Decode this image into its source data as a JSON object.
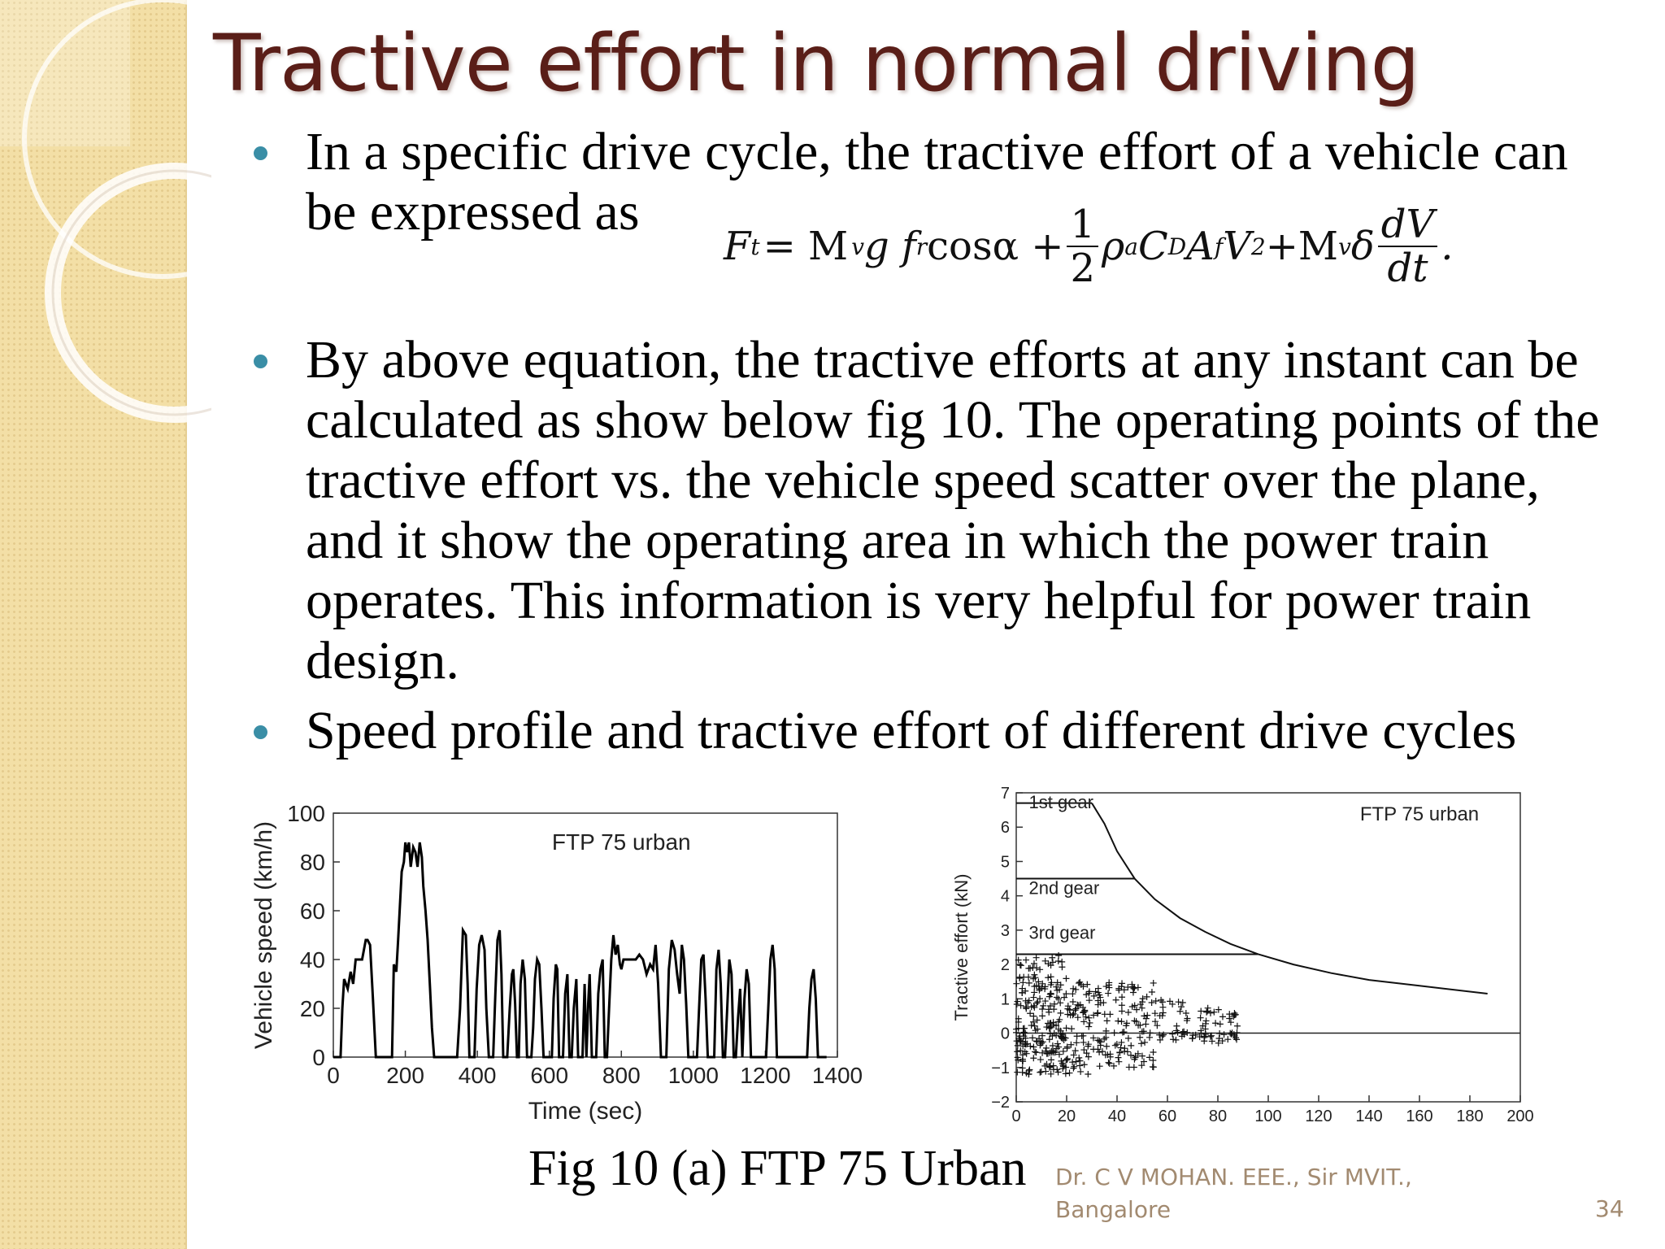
{
  "slide": {
    "title": "Tractive effort in normal driving",
    "bullets": [
      "In a specific drive cycle, the tractive effort of a vehicle can be expressed as",
      "By above equation, the tractive efforts at any instant can be calculated as show below fig 10. The operating points of the tractive effort vs. the vehicle speed scatter over the plane, and it show the operating area in which the power train operates. This information is very helpful for power train design.",
      "Speed profile and tractive effort of different drive cycles"
    ],
    "formula": {
      "lhs": "F",
      "lhs_sub": "t",
      "term1": "= M",
      "term1_sub": "v",
      "term1b": "g f",
      "term1b_sub": "r",
      "term1c": " cosα +",
      "half_num": "1",
      "half_den": "2",
      "term2": "ρ",
      "term2_sub": "a",
      "term2b": "C",
      "term2b_sub": "D",
      "term2c": " A",
      "term2c_sub": "f",
      "term2d": "V",
      "term2d_sup": "2",
      "term3": "+M",
      "term3_sub": "v",
      "term3b": "δ",
      "deriv_num": "dV",
      "deriv_den": "dt",
      "end": "."
    },
    "figure_caption": "Fig 10 (a) FTP 75 Urban",
    "footer_author": "Dr.  C V MOHAN.  EEE., Sir MVIT., Bangalore",
    "page_number": "34",
    "colors": {
      "title": "#5a1e18",
      "bullet": "#3a8ea6",
      "band": "#f3dfa6",
      "footer": "#a28a70"
    }
  },
  "chart_data": [
    {
      "type": "line",
      "legend_text": "FTP 75 urban",
      "xlabel": "Time (sec)",
      "ylabel": "Vehicle speed (km/h)",
      "xlim": [
        0,
        1400
      ],
      "ylim": [
        0,
        100
      ],
      "xticks": [
        0,
        200,
        400,
        600,
        800,
        1000,
        1200,
        1400
      ],
      "yticks": [
        0,
        20,
        40,
        60,
        80,
        100
      ],
      "x": [
        0,
        20,
        25,
        30,
        40,
        48,
        55,
        62,
        72,
        80,
        90,
        95,
        102,
        110,
        118,
        122,
        128,
        134,
        140,
        150,
        155,
        160,
        163,
        168,
        175,
        180,
        185,
        190,
        196,
        200,
        205,
        210,
        215,
        222,
        228,
        234,
        240,
        246,
        250,
        256,
        262,
        268,
        274,
        280,
        286,
        292,
        300,
        308,
        316,
        324,
        332,
        338,
        344,
        352,
        360,
        368,
        373,
        378,
        385,
        392,
        398,
        405,
        412,
        420,
        425,
        432,
        438,
        444,
        450,
        456,
        462,
        467,
        472,
        478,
        483,
        490,
        496,
        500,
        505,
        510,
        515,
        520,
        526,
        532,
        538,
        545,
        550,
        555,
        560,
        566,
        572,
        578,
        584,
        590,
        596,
        602,
        607,
        612,
        618,
        622,
        627,
        633,
        638,
        644,
        650,
        656,
        662,
        668,
        675,
        680,
        686,
        692,
        698,
        703,
        708,
        712,
        718,
        724,
        730,
        736,
        742,
        748,
        754,
        760,
        766,
        772,
        778,
        784,
        790,
        796,
        800,
        806,
        812,
        820,
        830,
        840,
        850,
        860,
        870,
        880,
        888,
        895,
        902,
        910,
        918,
        925,
        932,
        940,
        948,
        955,
        962,
        968,
        974,
        980,
        986,
        992,
        998,
        1004,
        1010,
        1016,
        1022,
        1028,
        1034,
        1040,
        1046,
        1052,
        1058,
        1064,
        1070,
        1076,
        1082,
        1088,
        1094,
        1100,
        1106,
        1112,
        1118,
        1124,
        1130,
        1136,
        1142,
        1148,
        1154,
        1160,
        1166,
        1172,
        1178,
        1184,
        1190,
        1196,
        1202,
        1208,
        1214,
        1220,
        1226,
        1232,
        1238,
        1244,
        1250,
        1256,
        1262,
        1268,
        1274,
        1280,
        1286,
        1292,
        1298,
        1304,
        1310,
        1316,
        1322,
        1328,
        1334,
        1340,
        1346,
        1352,
        1358,
        1364,
        1370
      ],
      "y": [
        0,
        0,
        20,
        32,
        28,
        35,
        30,
        40,
        40,
        40,
        48,
        48,
        46,
        24,
        0,
        0,
        0,
        0,
        0,
        0,
        0,
        0,
        0,
        38,
        35,
        48,
        62,
        76,
        80,
        88,
        84,
        88,
        78,
        86,
        84,
        78,
        88,
        82,
        70,
        60,
        48,
        30,
        12,
        0,
        0,
        0,
        0,
        0,
        0,
        0,
        0,
        0,
        0,
        20,
        52,
        50,
        30,
        0,
        0,
        0,
        28,
        46,
        50,
        44,
        20,
        0,
        0,
        0,
        26,
        48,
        52,
        34,
        0,
        0,
        0,
        20,
        34,
        36,
        22,
        0,
        0,
        30,
        40,
        32,
        0,
        0,
        0,
        12,
        32,
        40,
        38,
        20,
        0,
        0,
        0,
        0,
        0,
        24,
        38,
        36,
        0,
        0,
        0,
        26,
        34,
        0,
        0,
        20,
        32,
        0,
        0,
        0,
        30,
        0,
        22,
        34,
        0,
        0,
        0,
        26,
        36,
        40,
        0,
        0,
        20,
        40,
        50,
        42,
        46,
        38,
        36,
        40,
        40,
        40,
        40,
        40,
        42,
        40,
        34,
        38,
        36,
        46,
        30,
        0,
        0,
        0,
        36,
        48,
        44,
        34,
        26,
        46,
        40,
        22,
        0,
        0,
        0,
        0,
        0,
        20,
        40,
        42,
        24,
        0,
        0,
        0,
        0,
        36,
        44,
        30,
        0,
        0,
        20,
        40,
        34,
        0,
        0,
        16,
        28,
        0,
        24,
        36,
        30,
        0,
        0,
        0,
        0,
        0,
        0,
        0,
        0,
        20,
        40,
        46,
        36,
        0,
        0,
        0,
        0,
        0,
        0,
        0,
        0,
        0,
        0,
        0,
        0,
        0,
        0,
        0,
        20,
        32,
        36,
        24,
        0,
        0,
        0,
        0,
        0
      ],
      "grid": false
    },
    {
      "type": "scatter",
      "legend_text": "FTP 75 urban",
      "xlabel": "",
      "ylabel": "Tractive effort (kN)",
      "xlim": [
        0,
        200
      ],
      "ylim": [
        -2,
        7
      ],
      "xticks": [
        0,
        20,
        40,
        60,
        80,
        100,
        120,
        140,
        160,
        180,
        200
      ],
      "yticks": [
        -2,
        -1,
        0,
        1,
        2,
        3,
        4,
        5,
        6,
        7
      ],
      "gear_labels": [
        "1st gear",
        "2nd gear",
        "3rd gear"
      ],
      "gear_lines": [
        {
          "label": "1st gear",
          "effort_kN": 6.7,
          "to_speed_kmh": 30
        },
        {
          "label": "2nd gear",
          "effort_kN": 4.5,
          "to_speed_kmh": 47
        },
        {
          "label": "3rd gear",
          "effort_kN": 2.3,
          "to_speed_kmh": 96
        }
      ],
      "envelope": {
        "x": [
          30,
          35,
          40,
          47,
          55,
          65,
          75,
          85,
          96,
          110,
          125,
          140,
          160,
          187
        ],
        "y": [
          6.7,
          6.1,
          5.3,
          4.5,
          3.9,
          3.35,
          2.95,
          2.6,
          2.3,
          2.0,
          1.75,
          1.55,
          1.38,
          1.15
        ]
      },
      "operating_points_note": "dense cloud of operating points between 0 and about 88 km/h, effort -1.2 to 2.3 kN",
      "grid": false
    }
  ]
}
